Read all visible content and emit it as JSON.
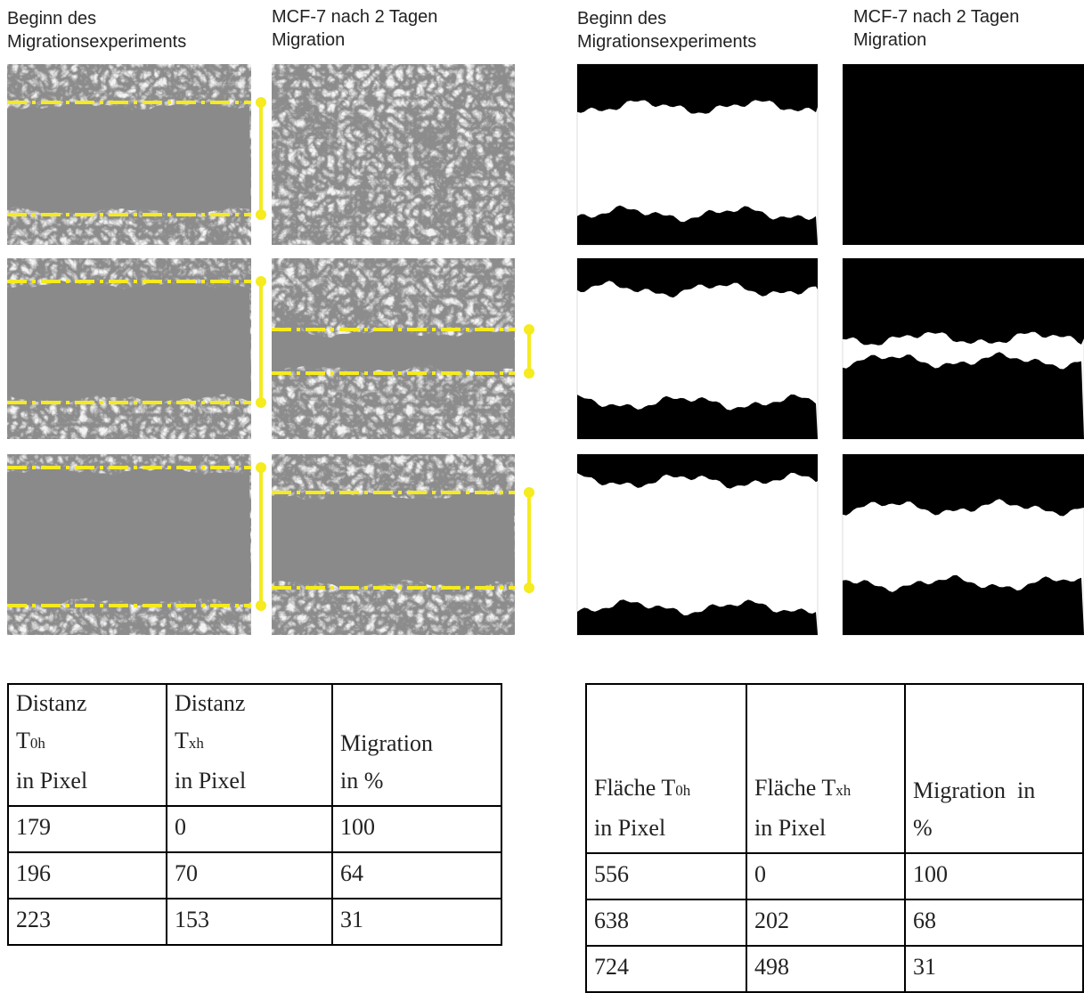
{
  "left_panel": {
    "headers": [
      [
        "Beginn des",
        "Migrationsexperiments"
      ],
      [
        "MCF-7 nach 2 Tagen",
        "Migration"
      ]
    ]
  },
  "right_panel": {
    "headers": [
      [
        "Beginn des",
        "Migrationsexperiments"
      ],
      [
        "MCF-7 nach 2 Tagen",
        "Migration"
      ]
    ]
  },
  "left_table": {
    "header": [
      [
        "Distanz",
        "T",
        "0h",
        "in Pixel"
      ],
      [
        "Distanz",
        "T",
        "xh",
        "in Pixel"
      ],
      [
        "Migration",
        "in %"
      ]
    ],
    "rows": [
      [
        179,
        0,
        100
      ],
      [
        196,
        70,
        64
      ],
      [
        223,
        153,
        31
      ]
    ]
  },
  "right_table": {
    "header": [
      [
        "Fläche T",
        "0h",
        "in Pixel"
      ],
      [
        "Fläche T",
        "xh",
        "in Pixel"
      ],
      [
        "Migration  in",
        "%"
      ]
    ],
    "rows": [
      [
        556,
        0,
        100
      ],
      [
        638,
        202,
        68
      ],
      [
        724,
        498,
        31
      ]
    ]
  }
}
